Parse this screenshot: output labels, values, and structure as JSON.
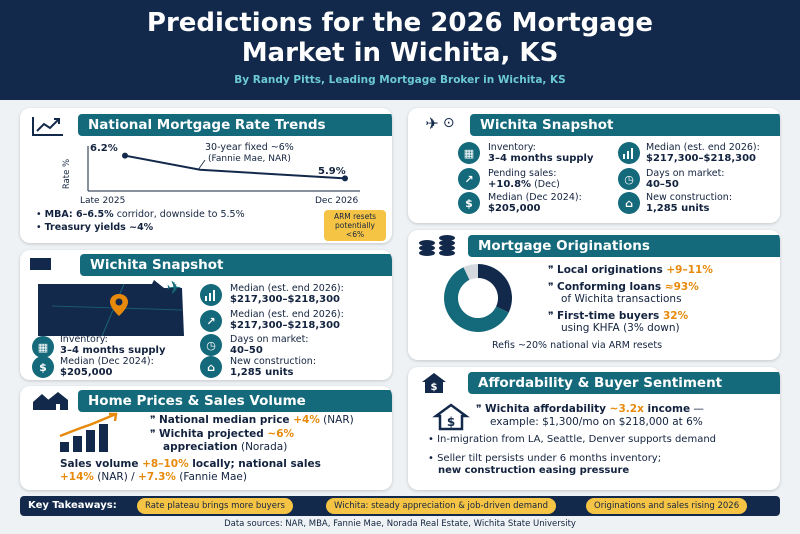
{
  "header": {
    "title_line1": "Predictions for the 2026 Mortgage",
    "title_line2": "Market in Wichita, KS",
    "byline": "By Randy Pitts, Leading Mortgage Broker in Wichita, KS"
  },
  "rate_trends": {
    "title": "National Mortgage Rate Trends",
    "y_axis_label": "Rate %",
    "start_label": "6.2%",
    "end_label": "5.9%",
    "x_start": "Late 2025",
    "x_end": "Dec 2026",
    "annotation_line1": "30-year fixed ~6%",
    "annotation_line2": "(Fannie Mae, NAR)",
    "bullet1_bold": "MBA: 6–6.5%",
    "bullet1_rest": " corridor, downside to 5.5%",
    "bullet2": "Treasury yields ~4%",
    "arm_note_line1": "ARM resets",
    "arm_note_line2": "potentially",
    "arm_note_line3": "<6%"
  },
  "chart_data": {
    "type": "line",
    "x": [
      "Late 2025",
      "Dec 2026"
    ],
    "series": [
      {
        "values": [
          6.2,
          5.9
        ]
      }
    ],
    "ylabel": "Rate %"
  },
  "snapshot_left": {
    "title": "Wichita Snapshot",
    "median1_label": "Median (est. end 2026):",
    "median1_value": "$217,300–$218,300",
    "median2_label": "Median (est. end 2026):",
    "median2_value": "$217,300–$218,300",
    "inventory_label": "Inventory:",
    "inventory_value": "3–4 months supply",
    "days_label": "Days on market:",
    "days_value": "40–50",
    "median2024_label": "Median (Dec 2024):",
    "median2024_value": "$205,000",
    "construction_label": "New construction:",
    "construction_value": "1,285 units"
  },
  "snapshot_right": {
    "title": "Wichita Snapshot",
    "inventory_label": "Inventory:",
    "inventory_value": "3–4 months supply",
    "median_label": "Median (est. end 2026):",
    "median_value": "$217,300–$218,300",
    "pending_label": "Pending sales:",
    "pending_value": "+10.8%",
    "pending_suffix": " (Dec)",
    "days_label": "Days on market:",
    "days_value": "40–50",
    "median2024_label": "Median (Dec 2024):",
    "median2024_value": "$205,000",
    "construction_label": "New construction:",
    "construction_value": "1,285 units"
  },
  "originations": {
    "title": "Mortgage Originations",
    "item1_bold": "Local originations",
    "item1_value": " +9–11%",
    "item2_bold": "Conforming loans",
    "item2_value": " ≈93%",
    "item2_line2": "of Wichita transactions",
    "item3_bold": "First-time buyers",
    "item3_value": " 32%",
    "item3_line2": "using KHFA (3% down)",
    "refis": "Refis ~20% national via ARM resets",
    "donut": [
      {
        "value": 32,
        "color": "#13294b"
      },
      {
        "value": 61,
        "color": "#14697a"
      },
      {
        "value": 7,
        "color": "#d4d9de"
      }
    ]
  },
  "home_prices": {
    "title": "Home Prices & Sales Volume",
    "item1_bold": "National median price",
    "item1_value": " +4%",
    "item1_rest": " (NAR)",
    "item2_bold": "Wichita projected",
    "item2_value": " ~6%",
    "item2_line2_bold": "appreciation",
    "item2_line2_rest": " (Norada)",
    "sales_bold": "Sales volume ",
    "sales_value": "+8–10%",
    "sales_rest": " locally; national sales",
    "sales_line2_value1": "+14%",
    "sales_line2_mid": " (NAR) / ",
    "sales_line2_value2": "+7.3%",
    "sales_line2_end": " (Fannie Mae)"
  },
  "affordability": {
    "title": "Affordability & Buyer Sentiment",
    "item1_bold": "Wichita affordability",
    "item1_value": " ~3.2x",
    "item1_bold2": " income",
    "item1_rest": " —",
    "item1_line2": "example: $1,300/mo on $218,000 at 6%",
    "item2": "In-migration from LA, Seattle, Denver supports demand",
    "item3_line1": "Seller tilt persists under 6 months inventory;",
    "item3_line2": "new construction easing pressure"
  },
  "footer": {
    "label": "Key Takeaways:",
    "pill1": "Rate plateau brings more buyers",
    "pill2": "Wichita: steady appreciation & job-driven demand",
    "pill3": "Originations and sales rising 2026",
    "sources": "Data sources: NAR, MBA, Fannie Mae, Norada Real Estate, Wichita State University"
  },
  "colors": {
    "navy": "#13294b",
    "teal": "#14697a",
    "orange": "#e78a0c",
    "gold": "#f6c445"
  }
}
